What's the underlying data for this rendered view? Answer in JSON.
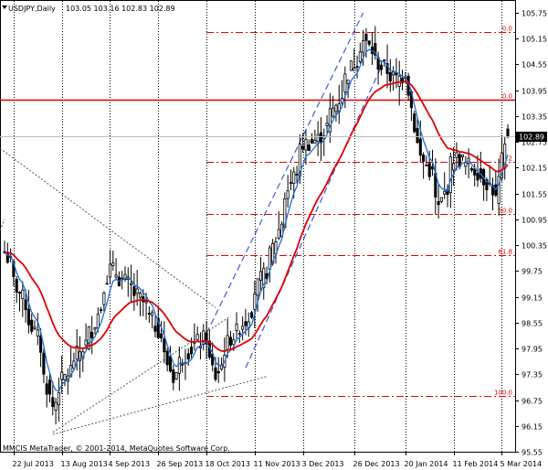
{
  "header": {
    "symbol": "USDJPY,Daily",
    "ohlc": "103.05 103.16 102.83 102.89"
  },
  "footer": {
    "copyright": "MMCIS MetaTrader, © 2001-2014, MetaQuotes Software Corp."
  },
  "colors": {
    "candle": "#000000",
    "fast_ma": "#1f6fd6",
    "slow_ma": "#e00000",
    "fibo": "#e00000",
    "channel": "#3b5bd8",
    "trendline": "#555555",
    "grid": "#000000"
  },
  "chart_data": {
    "type": "candlestick",
    "y_axis": {
      "min": 95.55,
      "max": 105.75,
      "ticks": [
        "105.75",
        "105.15",
        "104.55",
        "103.95",
        "103.35",
        "102.75",
        "102.15",
        "101.55",
        "100.95",
        "100.35",
        "99.75",
        "99.15",
        "98.55",
        "97.95",
        "97.35",
        "96.75",
        "96.15",
        "95.55"
      ]
    },
    "x_axis": {
      "labels": [
        "22 Jul 2013",
        "13 Aug 2013",
        "4 Sep 2013",
        "26 Sep 2013",
        "18 Oct 2013",
        "11 Nov 2013",
        "3 Dec 2013",
        "26 Dec 2013",
        "20 Jan 2014",
        "11 Feb 2014",
        "5 Mar 2014"
      ]
    },
    "last_price": "102.89",
    "fibonacci": [
      {
        "label": "0.0",
        "price": 105.3
      },
      {
        "label": "0.0",
        "price": 103.74
      },
      {
        "label": "38.2",
        "price": 102.28
      },
      {
        "label": "50.0",
        "price": 101.07
      },
      {
        "label": "61.8",
        "price": 100.11
      },
      {
        "label": "100.0",
        "price": 96.85
      }
    ],
    "horizontal_line": 103.74,
    "anchors": [
      {
        "date": "17 Jul 2013",
        "close": 100.2
      },
      {
        "date": "22 Jul 2013",
        "close": 99.5
      },
      {
        "date": "1 Aug 2013",
        "close": 98.2
      },
      {
        "date": "8 Aug 2013",
        "close": 96.6
      },
      {
        "date": "13 Aug 2013",
        "close": 97.2
      },
      {
        "date": "20 Aug 2013",
        "close": 97.8
      },
      {
        "date": "27 Aug 2013",
        "close": 98.4
      },
      {
        "date": "4 Sep 2013",
        "close": 99.8
      },
      {
        "date": "11 Sep 2013",
        "close": 99.5
      },
      {
        "date": "18 Sep 2013",
        "close": 99.1
      },
      {
        "date": "26 Sep 2013",
        "close": 98.4
      },
      {
        "date": "3 Oct 2013",
        "close": 97.3
      },
      {
        "date": "10 Oct 2013",
        "close": 97.9
      },
      {
        "date": "18 Oct 2013",
        "close": 98.2
      },
      {
        "date": "23 Oct 2013",
        "close": 97.3
      },
      {
        "date": "30 Oct 2013",
        "close": 98.2
      },
      {
        "date": "6 Nov 2013",
        "close": 98.6
      },
      {
        "date": "11 Nov 2013",
        "close": 99.3
      },
      {
        "date": "18 Nov 2013",
        "close": 100.1
      },
      {
        "date": "25 Nov 2013",
        "close": 101.5
      },
      {
        "date": "3 Dec 2013",
        "close": 102.7
      },
      {
        "date": "10 Dec 2013",
        "close": 102.8
      },
      {
        "date": "17 Dec 2013",
        "close": 103.5
      },
      {
        "date": "26 Dec 2013",
        "close": 104.6
      },
      {
        "date": "31 Dec 2013",
        "close": 105.1
      },
      {
        "date": "8 Jan 2014",
        "close": 104.5
      },
      {
        "date": "15 Jan 2014",
        "close": 104.2
      },
      {
        "date": "20 Jan 2014",
        "close": 104.4
      },
      {
        "date": "24 Jan 2014",
        "close": 102.7
      },
      {
        "date": "31 Jan 2014",
        "close": 102.0
      },
      {
        "date": "4 Feb 2014",
        "close": 101.2
      },
      {
        "date": "11 Feb 2014",
        "close": 102.4
      },
      {
        "date": "18 Feb 2014",
        "close": 102.2
      },
      {
        "date": "25 Feb 2014",
        "close": 101.9
      },
      {
        "date": "3 Mar 2014",
        "close": 101.4
      },
      {
        "date": "5 Mar 2014",
        "close": 102.3
      },
      {
        "date": "7 Mar 2014",
        "close": 102.89
      }
    ]
  }
}
